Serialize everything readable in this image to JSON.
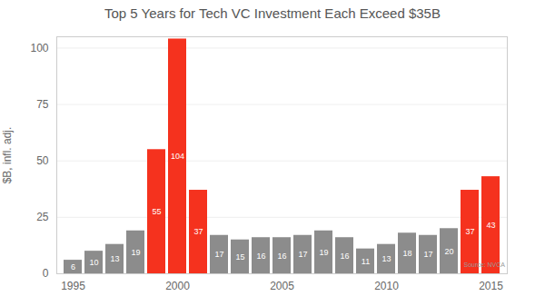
{
  "chart_data": {
    "type": "bar",
    "title": "Top 5 Years for Tech VC Investment Each Exceed $35B",
    "y_label": "$B, infl. adj.",
    "caption": "Source: NVCA",
    "categories": [
      1995,
      1996,
      1997,
      1998,
      1999,
      2000,
      2001,
      2002,
      2003,
      2004,
      2005,
      2006,
      2007,
      2008,
      2009,
      2010,
      2011,
      2012,
      2013,
      2014,
      2015
    ],
    "values": [
      6,
      10,
      13,
      19,
      55,
      104,
      37,
      17,
      15,
      16,
      16,
      17,
      19,
      16,
      11,
      13,
      18,
      17,
      20,
      37,
      43
    ],
    "colors": [
      "#8c8c8c",
      "#8c8c8c",
      "#8c8c8c",
      "#8c8c8c",
      "#f5321e",
      "#f5321e",
      "#f5321e",
      "#8c8c8c",
      "#8c8c8c",
      "#8c8c8c",
      "#8c8c8c",
      "#8c8c8c",
      "#8c8c8c",
      "#8c8c8c",
      "#8c8c8c",
      "#8c8c8c",
      "#8c8c8c",
      "#8c8c8c",
      "#8c8c8c",
      "#f5321e",
      "#f5321e"
    ],
    "xticks": [
      1995,
      2000,
      2005,
      2010,
      2015
    ],
    "ylim": [
      0,
      105
    ],
    "yticks": [
      0,
      25,
      50,
      75,
      100
    ],
    "grid": true,
    "data_labels": true
  }
}
